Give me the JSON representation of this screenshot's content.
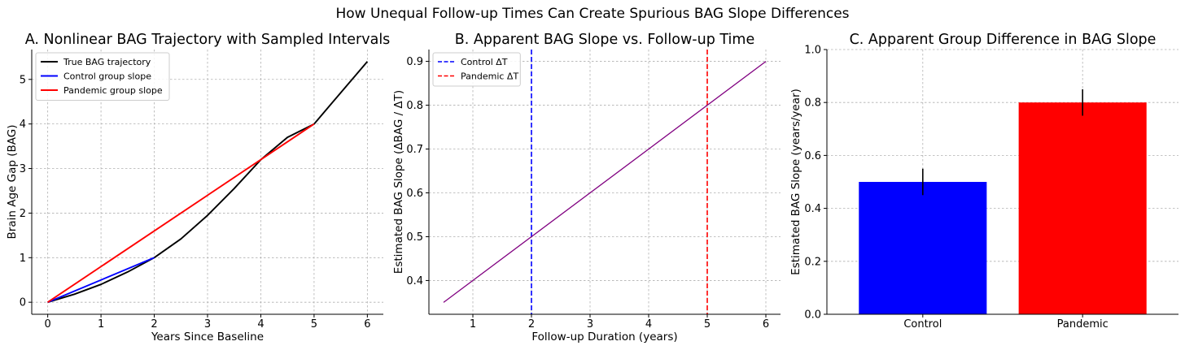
{
  "figure": {
    "suptitle": "How Unequal Follow-up Times Can Create Spurious BAG Slope Differences"
  },
  "colors": {
    "trajectory": "#000000",
    "control": "#0000ff",
    "pandemic": "#ff0000",
    "slope_line": "#800080",
    "grid": "#b0b0b0"
  },
  "chart_data": [
    {
      "type": "line",
      "title": "A. Nonlinear BAG Trajectory with Sampled Intervals",
      "xlabel": "Years Since Baseline",
      "ylabel": "Brain Age Gap (BAG)",
      "xlim": [
        -0.3,
        6.3
      ],
      "ylim": [
        -0.27,
        5.67
      ],
      "xticks": [
        0,
        1,
        2,
        3,
        4,
        5,
        6
      ],
      "yticks": [
        0,
        1,
        2,
        3,
        4,
        5
      ],
      "grid": true,
      "legend_position": "top-left",
      "series": [
        {
          "name": "True BAG trajectory",
          "color": "#000000",
          "x": [
            0,
            0.5,
            1,
            1.5,
            2,
            2.5,
            3,
            3.5,
            4,
            4.5,
            5,
            5.5,
            6
          ],
          "y": [
            0,
            0.18,
            0.4,
            0.68,
            1.0,
            1.42,
            1.95,
            2.55,
            3.2,
            3.7,
            4.0,
            4.7,
            5.4
          ]
        },
        {
          "name": "Control group slope",
          "color": "#0000ff",
          "x": [
            0,
            2
          ],
          "y": [
            0,
            1.0
          ]
        },
        {
          "name": "Pandemic group slope",
          "color": "#ff0000",
          "x": [
            0,
            5
          ],
          "y": [
            0,
            4.0
          ]
        }
      ]
    },
    {
      "type": "line",
      "title": "B. Apparent BAG Slope vs. Follow-up Time",
      "xlabel": "Follow-up Duration (years)",
      "ylabel": "Estimated BAG Slope (ΔBAG / ΔT)",
      "xlim": [
        0.25,
        6.25
      ],
      "ylim": [
        0.323,
        0.927
      ],
      "xticks": [
        1,
        2,
        3,
        4,
        5,
        6
      ],
      "yticks": [
        0.4,
        0.5,
        0.6,
        0.7,
        0.8,
        0.9
      ],
      "grid": true,
      "legend_position": "top-left",
      "series": [
        {
          "name": "",
          "color": "#800080",
          "x": [
            0.5,
            6
          ],
          "y": [
            0.35,
            0.9
          ]
        }
      ],
      "vlines": [
        {
          "name": "Control ΔT",
          "x": 2,
          "color": "#0000ff"
        },
        {
          "name": "Pandemic ΔT",
          "x": 5,
          "color": "#ff0000"
        }
      ]
    },
    {
      "type": "bar",
      "title": "C. Apparent Group Difference in BAG Slope",
      "xlabel": "",
      "ylabel": "Estimated BAG Slope (years/year)",
      "ylim": [
        0,
        1.0
      ],
      "yticks": [
        0.0,
        0.2,
        0.4,
        0.6,
        0.8,
        1.0
      ],
      "grid": true,
      "categories": [
        "Control",
        "Pandemic"
      ],
      "values": [
        0.5,
        0.8
      ],
      "errors": [
        0.05,
        0.05
      ],
      "colors": [
        "#0000ff",
        "#ff0000"
      ]
    }
  ]
}
